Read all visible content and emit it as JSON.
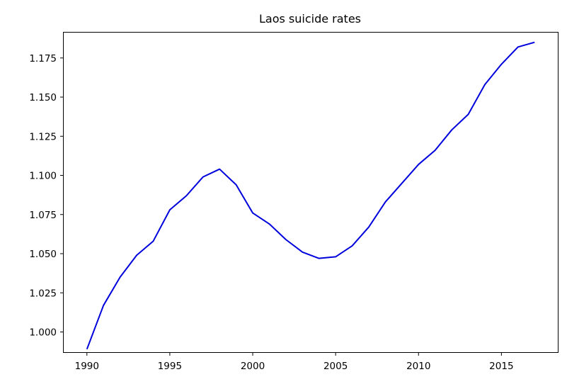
{
  "chart_data": {
    "type": "line",
    "title": "Laos suicide rates",
    "xlabel": "",
    "ylabel": "",
    "xlim": [
      1988.6,
      2018.4
    ],
    "ylim": [
      0.9871,
      1.1912
    ],
    "xticks": [
      1990,
      1995,
      2000,
      2005,
      2010,
      2015
    ],
    "yticks": [
      1.0,
      1.025,
      1.05,
      1.075,
      1.1,
      1.125,
      1.15,
      1.175
    ],
    "ytick_labels": [
      "1.000",
      "1.025",
      "1.050",
      "1.075",
      "1.100",
      "1.125",
      "1.150",
      "1.175"
    ],
    "grid": false,
    "series": [
      {
        "color": "#0000dd",
        "x": [
          1990,
          1991,
          1992,
          1993,
          1994,
          1995,
          1996,
          1997,
          1998,
          1999,
          2000,
          2001,
          2002,
          2003,
          2004,
          2005,
          2006,
          2007,
          2008,
          2009,
          2010,
          2011,
          2012,
          2013,
          2014,
          2015,
          2016,
          2017
        ],
        "y": [
          0.989,
          1.017,
          1.035,
          1.049,
          1.058,
          1.078,
          1.087,
          1.099,
          1.104,
          1.094,
          1.076,
          1.069,
          1.059,
          1.051,
          1.047,
          1.048,
          1.055,
          1.067,
          1.083,
          1.095,
          1.107,
          1.116,
          1.129,
          1.139,
          1.158,
          1.171,
          1.182,
          1.185
        ]
      }
    ]
  }
}
